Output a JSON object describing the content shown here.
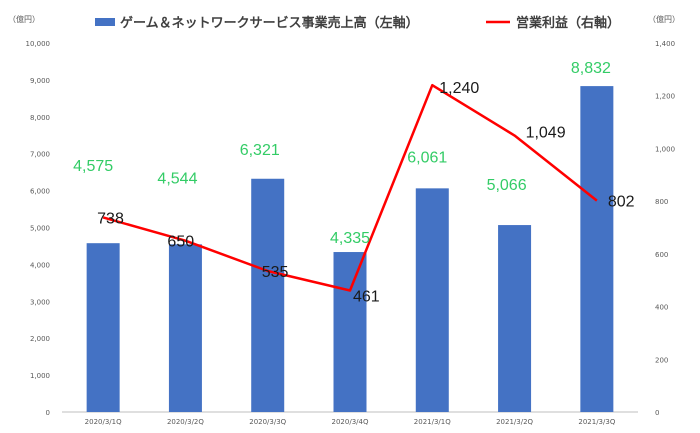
{
  "chart_data": {
    "type": "bar",
    "categories": [
      "2020/3/1Q",
      "2020/3/2Q",
      "2020/3/3Q",
      "2020/3/4Q",
      "2021/3/1Q",
      "2021/3/2Q",
      "2021/3/3Q"
    ],
    "series": [
      {
        "name": "ゲーム＆ネットワークサービス事業売上高（左軸）",
        "type": "bar",
        "axis": "left",
        "values": [
          4575,
          4544,
          6321,
          4335,
          6061,
          5066,
          8832
        ],
        "labels": [
          "4,575",
          "4,544",
          "6,321",
          "4,335",
          "6,061",
          "5,066",
          "8,832"
        ],
        "color": "#4472c4",
        "label_color": "#33cc66"
      },
      {
        "name": "営業利益（右軸）",
        "type": "line",
        "axis": "right",
        "values": [
          738,
          650,
          535,
          461,
          1240,
          1049,
          802
        ],
        "labels": [
          "738",
          "650",
          "535",
          "461",
          "1,240",
          "1,049",
          "802"
        ],
        "color": "#ff0000",
        "label_color": "#1a1a1a"
      }
    ],
    "left_axis": {
      "unit": "（億円）",
      "ylim": [
        0,
        10000
      ],
      "ticks": [
        "0",
        "1,000",
        "2,000",
        "3,000",
        "4,000",
        "5,000",
        "6,000",
        "7,000",
        "8,000",
        "9,000",
        "10,000"
      ]
    },
    "right_axis": {
      "unit": "（億円）",
      "ylim": [
        0,
        1400
      ],
      "ticks": [
        "0",
        "200",
        "400",
        "600",
        "800",
        "1,000",
        "1,200",
        "1,400"
      ]
    },
    "grid": false,
    "legend_position": "top"
  }
}
